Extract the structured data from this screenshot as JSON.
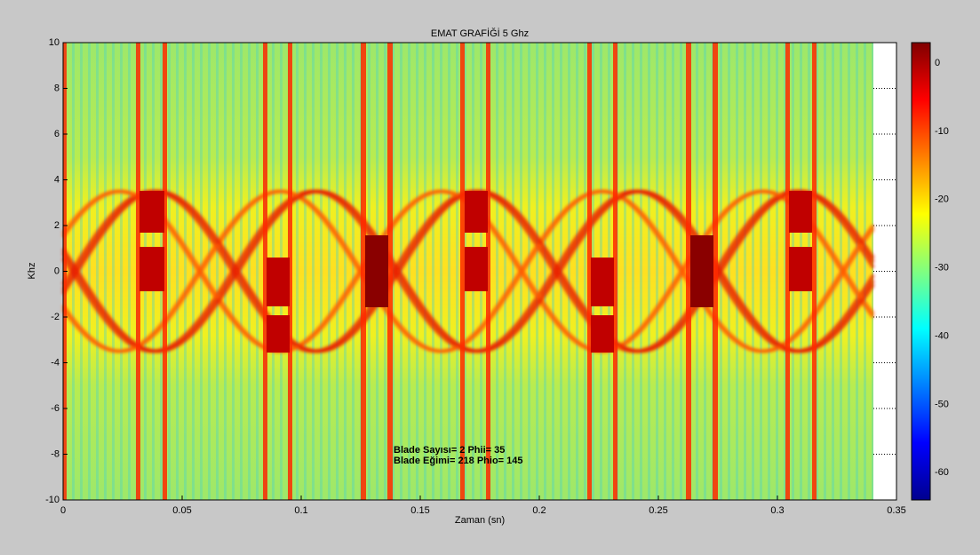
{
  "chart_data": {
    "type": "spectrogram",
    "title": "EMAT GRAFİĞİ 5 Ghz",
    "x_label": "Zaman (sn)",
    "y_label": "Khz",
    "xlim": [
      0,
      0.35
    ],
    "xticks": [
      0,
      0.05,
      0.1,
      0.15,
      0.2,
      0.25,
      0.3,
      0.35
    ],
    "ylim": [
      -10,
      10
    ],
    "yticks": [
      -10,
      -8,
      -6,
      -4,
      -2,
      0,
      2,
      4,
      6,
      8,
      10
    ],
    "clim": [
      -64,
      3
    ],
    "cticks": [
      -60,
      -50,
      -40,
      -30,
      -20,
      -10,
      0
    ],
    "grid": true,
    "annotations": [
      "Blade Sayısı= 2 Phii= 35",
      "Blade Eğimi= 218 Phio= 145"
    ]
  }
}
